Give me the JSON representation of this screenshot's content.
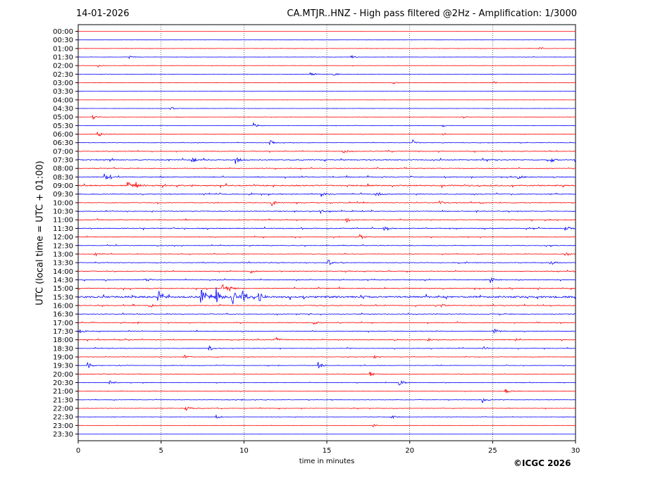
{
  "header": {
    "date": "14-01-2026",
    "title": "CA.MTJR..HNZ - High pass filtered @2Hz - Amplification: 1/3000"
  },
  "footer": {
    "copyright": "©ICGC 2026"
  },
  "colors": {
    "red": "#ff0000",
    "blue": "#0000ff",
    "grid": "#000000"
  },
  "chart_data": {
    "type": "line",
    "xlabel": "time in minutes",
    "ylabel": "UTC (local time = UTC + 01:00)",
    "xlim": [
      0,
      30
    ],
    "x_ticks": [
      0,
      5,
      10,
      15,
      20,
      25,
      30
    ],
    "y_tick_labels": [
      "00:00",
      "00:30",
      "01:00",
      "01:30",
      "02:00",
      "02:30",
      "03:00",
      "03:30",
      "04:00",
      "04:30",
      "05:00",
      "05:30",
      "06:00",
      "06:30",
      "07:00",
      "07:30",
      "08:00",
      "08:30",
      "09:00",
      "09:30",
      "10:00",
      "10:30",
      "11:00",
      "11:30",
      "12:00",
      "12:30",
      "13:00",
      "13:30",
      "14:00",
      "14:30",
      "15:00",
      "15:30",
      "16:00",
      "16:30",
      "17:00",
      "17:30",
      "18:00",
      "18:30",
      "19:00",
      "19:30",
      "20:00",
      "20:30",
      "21:00",
      "21:30",
      "22:00",
      "22:30",
      "23:00",
      "23:30"
    ],
    "trace_colors": [
      "red",
      "blue"
    ],
    "noise_level": [
      0.05,
      0.08,
      0.2,
      0.2,
      0.2,
      0.2,
      0.15,
      0.1,
      0.1,
      0.15,
      0.2,
      0.2,
      0.3,
      0.35,
      0.6,
      0.9,
      0.6,
      0.8,
      1.2,
      0.8,
      0.7,
      0.7,
      0.7,
      0.8,
      0.6,
      0.6,
      0.5,
      0.6,
      0.6,
      0.7,
      0.8,
      1.8,
      0.7,
      0.6,
      0.6,
      0.6,
      0.7,
      0.5,
      0.4,
      0.4,
      0.3,
      0.4,
      0.3,
      0.4,
      0.4,
      0.3,
      0.1,
      0.05
    ],
    "events": [
      {
        "row": "01:00",
        "min": 27.8,
        "amp": 3
      },
      {
        "row": "01:30",
        "min": 3.1,
        "amp": 2
      },
      {
        "row": "01:30",
        "min": 16.5,
        "amp": 2
      },
      {
        "row": "02:00",
        "min": 1.2,
        "amp": 2
      },
      {
        "row": "02:30",
        "min": 14.0,
        "amp": 3
      },
      {
        "row": "02:30",
        "min": 15.4,
        "amp": 3
      },
      {
        "row": "03:00",
        "min": 19.0,
        "amp": 2
      },
      {
        "row": "03:00",
        "min": 25.1,
        "amp": 2
      },
      {
        "row": "04:30",
        "min": 5.6,
        "amp": 2
      },
      {
        "row": "05:00",
        "min": 0.9,
        "amp": 3
      },
      {
        "row": "05:00",
        "min": 23.2,
        "amp": 2
      },
      {
        "row": "05:30",
        "min": 10.6,
        "amp": 4
      },
      {
        "row": "05:30",
        "min": 22.0,
        "amp": 2
      },
      {
        "row": "06:00",
        "min": 1.2,
        "amp": 4
      },
      {
        "row": "06:00",
        "min": 22.0,
        "amp": 2
      },
      {
        "row": "06:30",
        "min": 11.6,
        "amp": 3
      },
      {
        "row": "06:30",
        "min": 20.2,
        "amp": 4
      },
      {
        "row": "07:00",
        "min": 16.0,
        "amp": 4
      },
      {
        "row": "07:30",
        "min": 6.9,
        "amp": 4
      },
      {
        "row": "07:30",
        "min": 9.5,
        "amp": 6
      },
      {
        "row": "07:30",
        "min": 28.5,
        "amp": 4
      },
      {
        "row": "08:30",
        "min": 1.6,
        "amp": 4
      },
      {
        "row": "08:30",
        "min": 26.5,
        "amp": 4
      },
      {
        "row": "09:00",
        "min": 3.0,
        "amp": 5
      },
      {
        "row": "09:00",
        "min": 3.5,
        "amp": 4
      },
      {
        "row": "09:30",
        "min": 14.7,
        "amp": 4
      },
      {
        "row": "09:30",
        "min": 18.0,
        "amp": 4
      },
      {
        "row": "10:00",
        "min": 11.7,
        "amp": 4
      },
      {
        "row": "10:00",
        "min": 21.8,
        "amp": 3
      },
      {
        "row": "10:30",
        "min": 14.6,
        "amp": 3
      },
      {
        "row": "11:00",
        "min": 16.2,
        "amp": 3
      },
      {
        "row": "11:30",
        "min": 18.4,
        "amp": 4
      },
      {
        "row": "11:30",
        "min": 29.4,
        "amp": 4
      },
      {
        "row": "12:00",
        "min": 17.0,
        "amp": 4
      },
      {
        "row": "13:00",
        "min": 1.0,
        "amp": 3
      },
      {
        "row": "13:00",
        "min": 29.4,
        "amp": 4
      },
      {
        "row": "13:30",
        "min": 15.1,
        "amp": 4
      },
      {
        "row": "13:30",
        "min": 28.5,
        "amp": 4
      },
      {
        "row": "14:00",
        "min": 10.4,
        "amp": 3
      },
      {
        "row": "14:30",
        "min": 4.0,
        "amp": 4
      },
      {
        "row": "14:30",
        "min": 24.9,
        "amp": 4
      },
      {
        "row": "15:00",
        "min": 8.7,
        "amp": 6
      },
      {
        "row": "15:00",
        "min": 9.0,
        "amp": 5
      },
      {
        "row": "15:30",
        "min": 4.8,
        "amp": 6
      },
      {
        "row": "15:30",
        "min": 7.4,
        "amp": 12
      },
      {
        "row": "15:30",
        "min": 8.3,
        "amp": 12
      },
      {
        "row": "15:30",
        "min": 9.3,
        "amp": 12
      },
      {
        "row": "15:30",
        "min": 9.9,
        "amp": 12
      },
      {
        "row": "15:30",
        "min": 10.9,
        "amp": 8
      },
      {
        "row": "16:00",
        "min": 4.3,
        "amp": 4
      },
      {
        "row": "16:00",
        "min": 21.8,
        "amp": 4
      },
      {
        "row": "17:00",
        "min": 14.2,
        "amp": 3
      },
      {
        "row": "17:30",
        "min": 0.1,
        "amp": 3
      },
      {
        "row": "17:30",
        "min": 25.1,
        "amp": 4
      },
      {
        "row": "18:00",
        "min": 11.9,
        "amp": 4
      },
      {
        "row": "18:00",
        "min": 21.0,
        "amp": 4
      },
      {
        "row": "18:30",
        "min": 7.9,
        "amp": 4
      },
      {
        "row": "18:30",
        "min": 24.4,
        "amp": 4
      },
      {
        "row": "19:00",
        "min": 6.4,
        "amp": 3
      },
      {
        "row": "19:00",
        "min": 17.8,
        "amp": 3
      },
      {
        "row": "19:30",
        "min": 0.6,
        "amp": 4
      },
      {
        "row": "19:30",
        "min": 14.5,
        "amp": 5
      },
      {
        "row": "20:00",
        "min": 17.6,
        "amp": 4
      },
      {
        "row": "20:30",
        "min": 1.9,
        "amp": 3
      },
      {
        "row": "20:30",
        "min": 19.4,
        "amp": 4
      },
      {
        "row": "21:00",
        "min": 25.8,
        "amp": 3
      },
      {
        "row": "21:30",
        "min": 24.4,
        "amp": 4
      },
      {
        "row": "22:00",
        "min": 6.5,
        "amp": 4
      },
      {
        "row": "22:30",
        "min": 8.3,
        "amp": 4
      },
      {
        "row": "22:30",
        "min": 18.9,
        "amp": 3
      },
      {
        "row": "23:00",
        "min": 17.8,
        "amp": 2
      }
    ]
  }
}
